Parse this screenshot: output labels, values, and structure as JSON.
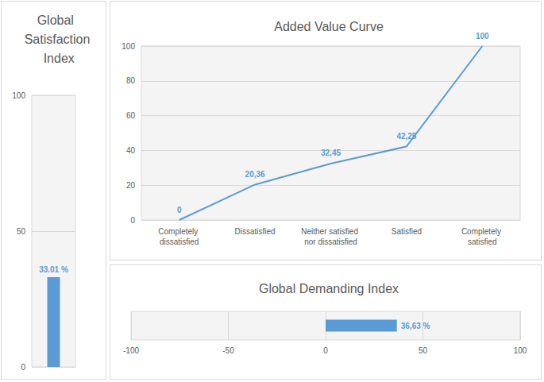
{
  "chart_data": [
    {
      "type": "bar",
      "title": "Global Satisfaction Index",
      "categories": [
        null
      ],
      "values": [
        33.01
      ],
      "value_labels": [
        "33.01 %"
      ],
      "data_labels": true,
      "color": "#5b9bd5",
      "ylim": [
        0,
        100
      ],
      "yticks": [
        0,
        50,
        100
      ],
      "grid": true
    },
    {
      "type": "line",
      "title": "Added Value Curve",
      "categories": [
        "Completely dissatisfied",
        "Dissatisfied",
        "Neither satisfied nor dissatisfied",
        "Satisfied",
        "Completely satisfied"
      ],
      "values": [
        0,
        20.36,
        32.45,
        42.25,
        100
      ],
      "value_labels": [
        "0",
        "20,36",
        "32,45",
        "42,25",
        "100"
      ],
      "data_labels": true,
      "color": "#5b9bd5",
      "ylim": [
        0,
        100
      ],
      "yticks": [
        0,
        20,
        40,
        60,
        80,
        100
      ],
      "grid": true
    },
    {
      "type": "bar",
      "orientation": "horizontal",
      "title": "Global Demanding Index",
      "categories": [
        null
      ],
      "values": [
        36.63
      ],
      "value_labels": [
        "36,63 %"
      ],
      "data_labels": true,
      "color": "#5b9bd5",
      "xlim": [
        -100,
        100
      ],
      "xticks": [
        -100,
        -50,
        0,
        50,
        100
      ],
      "grid": true
    }
  ]
}
